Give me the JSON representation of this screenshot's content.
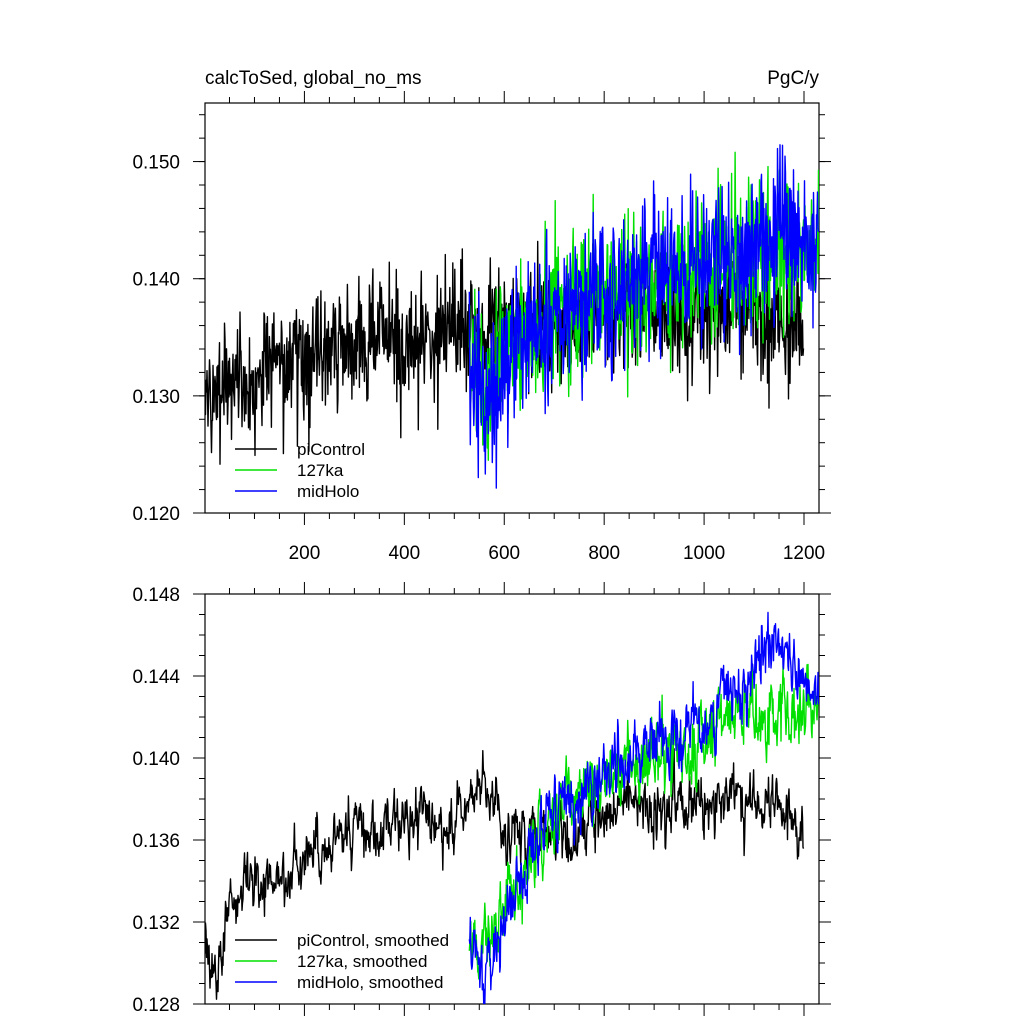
{
  "chart_data": [
    {
      "type": "line",
      "title": "calcToSed, global_no_ms",
      "units": "PgC/y",
      "xlim": [
        1,
        1230
      ],
      "ylim": [
        0.12,
        0.155
      ],
      "xticks": [
        200,
        400,
        600,
        800,
        1000,
        1200
      ],
      "yticks": [
        0.12,
        0.13,
        0.14,
        0.15
      ],
      "ytick_labels": [
        "0.120",
        "0.130",
        "0.140",
        "0.150"
      ],
      "legend_position": "bottom-left",
      "series": [
        {
          "name": "piControl",
          "color": "#000000",
          "x": [
            1,
            50,
            100,
            150,
            200,
            250,
            300,
            350,
            400,
            450,
            500,
            550,
            600,
            650,
            700,
            750,
            800,
            850,
            900,
            950,
            1000,
            1050,
            1100,
            1150,
            1200
          ],
          "values": [
            0.13,
            0.131,
            0.132,
            0.133,
            0.133,
            0.134,
            0.134,
            0.135,
            0.135,
            0.135,
            0.136,
            0.136,
            0.137,
            0.136,
            0.135,
            0.136,
            0.137,
            0.137,
            0.137,
            0.137,
            0.137,
            0.137,
            0.137,
            0.136,
            0.136
          ],
          "noise": 0.0032
        },
        {
          "name": "127ka",
          "color": "#00e000",
          "x": [
            530,
            560,
            600,
            650,
            700,
            750,
            800,
            850,
            900,
            950,
            1000,
            1050,
            1100,
            1150,
            1200,
            1230
          ],
          "values": [
            0.133,
            0.131,
            0.134,
            0.136,
            0.137,
            0.138,
            0.139,
            0.139,
            0.14,
            0.14,
            0.141,
            0.141,
            0.142,
            0.142,
            0.142,
            0.143
          ],
          "noise": 0.0036
        },
        {
          "name": "midHolo",
          "color": "#0000ff",
          "x": [
            530,
            560,
            600,
            650,
            700,
            750,
            800,
            850,
            900,
            950,
            1000,
            1050,
            1100,
            1150,
            1200,
            1230
          ],
          "values": [
            0.131,
            0.129,
            0.133,
            0.135,
            0.137,
            0.138,
            0.139,
            0.14,
            0.141,
            0.141,
            0.142,
            0.142,
            0.143,
            0.144,
            0.143,
            0.143
          ],
          "noise": 0.004
        }
      ]
    },
    {
      "type": "line",
      "xlim": [
        1,
        1230
      ],
      "ylim": [
        0.128,
        0.148
      ],
      "yticks": [
        0.128,
        0.132,
        0.136,
        0.14,
        0.144,
        0.148
      ],
      "ytick_labels": [
        "0.128",
        "0.132",
        "0.136",
        "0.140",
        "0.144",
        "0.148"
      ],
      "legend_position": "bottom-left",
      "series": [
        {
          "name": "piControl, smoothed",
          "color": "#000000",
          "x": [
            1,
            30,
            50,
            100,
            150,
            200,
            250,
            300,
            350,
            400,
            450,
            480,
            500,
            550,
            600,
            650,
            700,
            750,
            800,
            850,
            900,
            950,
            1000,
            1050,
            1100,
            1150,
            1200
          ],
          "values": [
            0.13,
            0.13,
            0.133,
            0.134,
            0.134,
            0.135,
            0.136,
            0.137,
            0.136,
            0.137,
            0.137,
            0.136,
            0.137,
            0.139,
            0.137,
            0.136,
            0.136,
            0.136,
            0.137,
            0.138,
            0.137,
            0.138,
            0.138,
            0.138,
            0.138,
            0.138,
            0.136
          ],
          "noise": 0.0006
        },
        {
          "name": "127ka, smoothed",
          "color": "#00e000",
          "x": [
            530,
            550,
            570,
            600,
            650,
            700,
            750,
            800,
            850,
            900,
            950,
            1000,
            1050,
            1100,
            1150,
            1200,
            1230
          ],
          "values": [
            0.131,
            0.13,
            0.131,
            0.133,
            0.135,
            0.137,
            0.138,
            0.139,
            0.14,
            0.14,
            0.14,
            0.141,
            0.142,
            0.142,
            0.142,
            0.142,
            0.143
          ],
          "noise": 0.0008
        },
        {
          "name": "midHolo, smoothed",
          "color": "#0000ff",
          "x": [
            530,
            550,
            560,
            600,
            650,
            700,
            750,
            800,
            850,
            900,
            950,
            1000,
            1050,
            1100,
            1130,
            1150,
            1200,
            1230
          ],
          "values": [
            0.131,
            0.13,
            0.129,
            0.132,
            0.135,
            0.137,
            0.138,
            0.139,
            0.14,
            0.141,
            0.141,
            0.142,
            0.143,
            0.144,
            0.146,
            0.145,
            0.144,
            0.143
          ],
          "noise": 0.0007
        }
      ]
    }
  ]
}
